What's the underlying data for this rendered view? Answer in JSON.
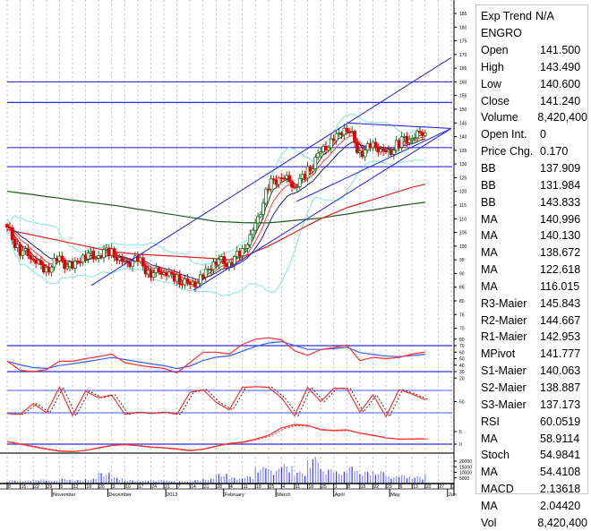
{
  "symbol": "ENGRO",
  "info_panel": [
    {
      "label": "Exp Trend",
      "value": "N/A"
    },
    {
      "label": "ENGRO",
      "value": ""
    },
    {
      "label": "Open",
      "value": "141.500"
    },
    {
      "label": "High",
      "value": "143.490"
    },
    {
      "label": "Low",
      "value": "140.600"
    },
    {
      "label": "Close",
      "value": "141.240"
    },
    {
      "label": "Volume",
      "value": "8,420,400"
    },
    {
      "label": "Open Int.",
      "value": "0"
    },
    {
      "label": "Price Chg.",
      "value": "0.170"
    },
    {
      "label": "BB",
      "value": "137.909"
    },
    {
      "label": "BB",
      "value": "131.984"
    },
    {
      "label": "BB",
      "value": "143.833"
    },
    {
      "label": "MA",
      "value": "140.996"
    },
    {
      "label": "MA",
      "value": "140.130"
    },
    {
      "label": "MA",
      "value": "138.672"
    },
    {
      "label": "MA",
      "value": "122.618"
    },
    {
      "label": "MA",
      "value": "116.015"
    },
    {
      "label": "R3-Maier",
      "value": "145.843"
    },
    {
      "label": "R2-Maier",
      "value": "144.667"
    },
    {
      "label": "R1-Maier",
      "value": "142.953"
    },
    {
      "label": "MPivot",
      "value": "141.777"
    },
    {
      "label": "S1-Maier",
      "value": "140.063"
    },
    {
      "label": "S2-Maier",
      "value": "138.887"
    },
    {
      "label": "S3-Maier",
      "value": "137.173"
    },
    {
      "label": "RSI",
      "value": "60.0519"
    },
    {
      "label": "MA",
      "value": "58.9114"
    },
    {
      "label": "Stoch",
      "value": "54.9841"
    },
    {
      "label": "MA",
      "value": "54.4108"
    },
    {
      "label": "MACD",
      "value": "2.13618"
    },
    {
      "label": "MA",
      "value": "2.04420"
    },
    {
      "label": "Vol",
      "value": "8,420,400"
    }
  ],
  "colors": {
    "up_candle": "#1f6b1f",
    "down_candle": "#e00000",
    "trendline": "#3030e0",
    "bollinger": "#7fe8d8",
    "ma_long_red": "#e02020",
    "ma_long_green": "#1e5a1e",
    "rsi": "#ff3030",
    "rsi_ma": "#3a5cff",
    "volume": "#3a3aff",
    "grid": "#bdbdbd"
  },
  "chart_data": {
    "type": "candlestick",
    "xlim": [
      "2012-10-08",
      "2013-06-03"
    ],
    "price_axis": {
      "range": [
        70,
        185
      ],
      "tick_step": 5
    },
    "grid": "vertical dotted",
    "weeks": [
      "2012-10-08",
      "2012-10-15",
      "2012-10-22",
      "2012-10-29",
      "2012-11-05",
      "2012-11-12",
      "2012-11-19",
      "2012-11-26",
      "2012-12-03",
      "2012-12-10",
      "2012-12-17",
      "2012-12-24",
      "2012-12-31",
      "2013-01-07",
      "2013-01-14",
      "2013-01-21",
      "2013-01-28",
      "2013-02-04",
      "2013-02-11",
      "2013-02-18",
      "2013-02-25",
      "2013-03-04",
      "2013-03-11",
      "2013-03-18",
      "2013-03-25",
      "2013-04-01",
      "2013-04-08",
      "2013-04-15",
      "2013-04-22",
      "2013-04-29",
      "2013-05-06",
      "2013-05-13",
      "2013-05-20"
    ],
    "close": [
      106,
      99,
      95,
      92,
      94,
      93,
      96,
      98,
      97,
      94,
      94,
      91,
      90,
      89,
      84,
      90,
      94,
      95,
      97,
      108,
      121,
      127,
      121,
      128,
      133,
      140,
      143,
      135,
      136,
      134,
      137,
      141,
      141.24
    ],
    "ma_long_red": [
      106,
      105,
      104,
      103,
      102,
      101,
      100,
      99,
      98,
      97.5,
      97,
      96.8,
      96.5,
      96.3,
      96,
      95.7,
      95.4,
      95,
      96,
      98,
      100,
      102.5,
      105,
      107.5,
      110,
      112,
      114,
      115.5,
      117,
      118.5,
      120,
      121.5,
      122.6
    ],
    "ma_long_green": [
      120,
      119.4,
      118.8,
      118.1,
      117.5,
      116.8,
      116.2,
      115.6,
      115,
      114.3,
      113.5,
      112.8,
      112,
      111.3,
      110.5,
      109.8,
      109,
      108.8,
      108.6,
      108.5,
      108.5,
      108.9,
      109.4,
      109.8,
      110.2,
      111,
      111.7,
      112.5,
      113.2,
      114,
      114.7,
      115.4,
      116.0
    ],
    "trendlines": [
      {
        "from": [
          "2012-11-22",
          85.6
        ],
        "to": [
          "2013-06-03",
          168.9
        ]
      },
      {
        "from": [
          "2013-01-16",
          84
        ],
        "to": [
          "2013-06-03",
          143
        ]
      },
      {
        "from": [
          "2013-03-12",
          116.3
        ],
        "to": [
          "2013-06-03",
          143
        ]
      },
      {
        "from": [
          "2013-04-08",
          145
        ],
        "to": [
          "2013-06-03",
          143
        ]
      }
    ],
    "horizontal_levels": [
      160,
      152.5,
      136,
      129
    ],
    "rsi": {
      "levels": [
        70,
        30
      ],
      "ticks": [
        80,
        70,
        60,
        50,
        40,
        30,
        20
      ],
      "values": [
        46,
        32,
        30,
        33,
        46,
        46,
        50,
        53,
        57,
        44,
        40,
        37,
        35,
        28,
        44,
        60,
        60,
        57,
        72,
        80,
        82,
        79,
        62,
        55,
        64,
        67,
        71,
        47,
        52,
        50,
        52,
        57,
        60.05
      ]
    },
    "stoch": {
      "levels": [
        80,
        20
      ],
      "ticks": [
        50
      ],
      "values": [
        18,
        16,
        45,
        20,
        88,
        12,
        78,
        60,
        68,
        16,
        22,
        18,
        22,
        16,
        75,
        82,
        48,
        28,
        88,
        90,
        88,
        60,
        12,
        88,
        50,
        86,
        85,
        22,
        68,
        10,
        82,
        70,
        54.98
      ]
    },
    "macd": {
      "levels": [
        0
      ],
      "ticks": [
        5,
        0
      ],
      "values": [
        1,
        0,
        -1,
        -2,
        -2.8,
        -3,
        -2.5,
        -1.5,
        -0.5,
        -0.2,
        -0.6,
        -1.2,
        -1.5,
        -2,
        -2.6,
        -2,
        -0.8,
        0.3,
        0.8,
        2,
        3.5,
        6.5,
        7.8,
        7.5,
        5.8,
        5.5,
        5.7,
        4.4,
        3.5,
        2.5,
        2,
        2.1,
        2.14
      ]
    },
    "volume": {
      "ticks": [
        "20000",
        "15000",
        "10000",
        "5000"
      ],
      "values": [
        3000,
        2500,
        3500,
        2500,
        4000,
        3000,
        4000,
        9000,
        5000,
        3000,
        2500,
        3000,
        2500,
        2000,
        3000,
        4000,
        8000,
        5000,
        6000,
        14000,
        12000,
        16000,
        10000,
        22000,
        12000,
        10000,
        14000,
        10000,
        10000,
        6000,
        7000,
        6000,
        8420
      ]
    },
    "x_ticks": [
      {
        "date": "2012-10-08",
        "label": "8"
      },
      {
        "date": "2012-10-15",
        "label": "15"
      },
      {
        "date": "2012-10-22",
        "label": "22"
      },
      {
        "date": "2012-10-29",
        "label": "29"
      },
      {
        "date": "2012-11-05",
        "label": "5"
      },
      {
        "date": "2012-11-12",
        "label": "12"
      },
      {
        "date": "2012-11-19",
        "label": "19"
      },
      {
        "date": "2012-11-26",
        "label": "26"
      },
      {
        "date": "2012-12-03",
        "label": "3"
      },
      {
        "date": "2012-12-10",
        "label": "10"
      },
      {
        "date": "2012-12-17",
        "label": "17"
      },
      {
        "date": "2012-12-24",
        "label": "24"
      },
      {
        "date": "2012-12-31",
        "label": "31"
      },
      {
        "date": "2013-01-07",
        "label": "7"
      },
      {
        "date": "2013-01-14",
        "label": "14"
      },
      {
        "date": "2013-01-21",
        "label": "21"
      },
      {
        "date": "2013-01-28",
        "label": "28"
      },
      {
        "date": "2013-02-04",
        "label": "4"
      },
      {
        "date": "2013-02-11",
        "label": "11"
      },
      {
        "date": "2013-02-18",
        "label": "18"
      },
      {
        "date": "2013-02-25",
        "label": "25"
      },
      {
        "date": "2013-03-04",
        "label": "4"
      },
      {
        "date": "2013-03-11",
        "label": "11"
      },
      {
        "date": "2013-03-18",
        "label": "18"
      },
      {
        "date": "2013-03-25",
        "label": "25"
      },
      {
        "date": "2013-04-01",
        "label": "1"
      },
      {
        "date": "2013-04-08",
        "label": "8"
      },
      {
        "date": "2013-04-15",
        "label": "15"
      },
      {
        "date": "2013-04-22",
        "label": "22"
      },
      {
        "date": "2013-04-29",
        "label": "29"
      },
      {
        "date": "2013-05-06",
        "label": "6"
      },
      {
        "date": "2013-05-13",
        "label": "13"
      },
      {
        "date": "2013-05-20",
        "label": "20"
      },
      {
        "date": "2013-05-27",
        "label": "27"
      },
      {
        "date": "2013-06-03",
        "label": "3"
      }
    ],
    "month_labels": [
      {
        "date": "2012-11-01",
        "label": "November"
      },
      {
        "date": "2012-12-01",
        "label": "December"
      },
      {
        "date": "2013-01-01",
        "label": "2013"
      },
      {
        "date": "2013-02-01",
        "label": "February"
      },
      {
        "date": "2013-03-01",
        "label": "March"
      },
      {
        "date": "2013-04-01",
        "label": "April"
      },
      {
        "date": "2013-05-01",
        "label": "May"
      },
      {
        "date": "2013-06-01",
        "label": "Jun"
      }
    ]
  }
}
